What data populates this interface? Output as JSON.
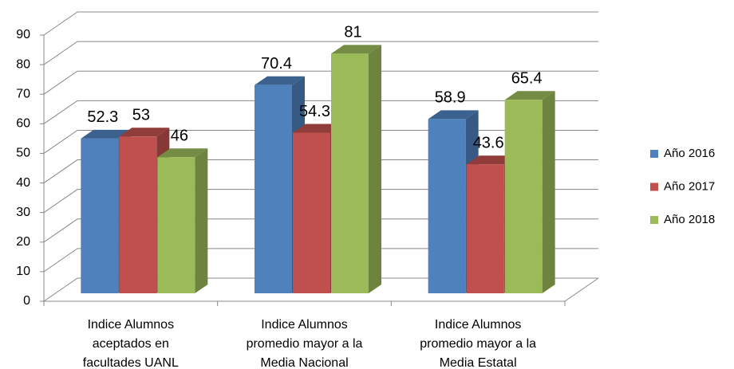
{
  "chart_data": {
    "type": "bar3d",
    "categories": [
      [
        "Indice Alumnos",
        "aceptados en",
        "facultades UANL"
      ],
      [
        "Indice Alumnos",
        "promedio mayor a la",
        "Media Nacional"
      ],
      [
        "Indice Alumnos",
        "promedio mayor a la",
        "Media Estatal"
      ]
    ],
    "series": [
      {
        "name": "Año 2016",
        "color": "#4f81bd",
        "values": [
          52.3,
          70.4,
          58.9
        ]
      },
      {
        "name": "Año 2017",
        "color": "#c0504d",
        "values": [
          53,
          54.3,
          43.6
        ]
      },
      {
        "name": "Año 2018",
        "color": "#9bbb59",
        "values": [
          46,
          81,
          65.4
        ]
      }
    ],
    "ylim": [
      0,
      90
    ],
    "yticks": [
      0,
      10,
      20,
      30,
      40,
      50,
      60,
      70,
      80,
      90
    ],
    "grid": true,
    "legend": "right"
  }
}
